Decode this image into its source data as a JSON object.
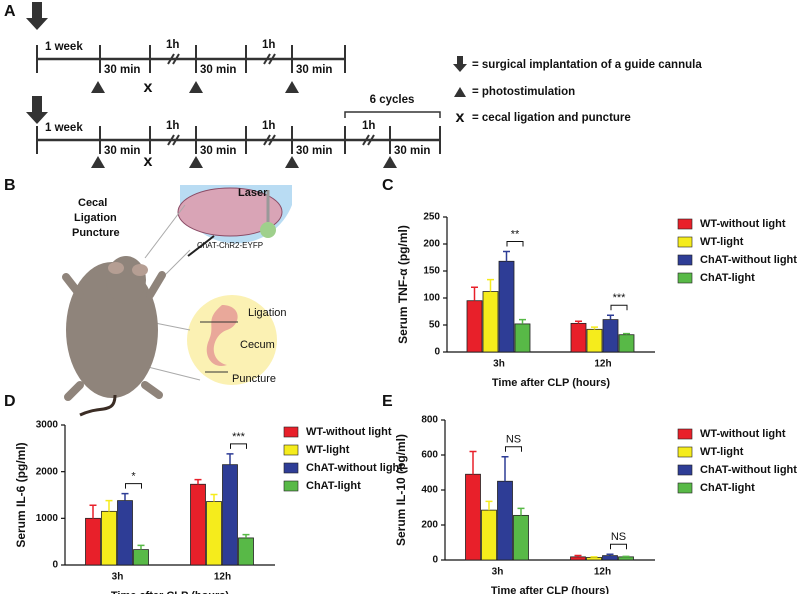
{
  "panel_labels": [
    "A",
    "B",
    "C",
    "D",
    "E"
  ],
  "timeline": {
    "week": "1 week",
    "stim": "30 min",
    "interval": "1h",
    "cycles": "6 cycles"
  },
  "legend_a": [
    "= surgical implantation of a guide cannula",
    "= photostimulation",
    "= cecal ligation and puncture"
  ],
  "diagram_b": {
    "title": [
      "Cecal",
      "Ligation",
      "Puncture"
    ],
    "laser": "Laser",
    "mouse_line": "ChAT-ChR2-EYFP",
    "ligation": "Ligation",
    "cecum": "Cecum",
    "puncture": "Puncture"
  },
  "chart_data": [
    {
      "type": "bar",
      "ylabel": "Serum TNF-α (pg/ml)",
      "xlabel": "Time after CLP (hours)",
      "categories": [
        "3h",
        "12h"
      ],
      "series": [
        {
          "name": "WT-without light",
          "color": "#e8202a",
          "values": [
            95,
            53
          ],
          "errors": [
            25,
            4
          ]
        },
        {
          "name": "WT-light",
          "color": "#f5ec1c",
          "values": [
            112,
            42
          ],
          "errors": [
            22,
            4
          ]
        },
        {
          "name": "ChAT-without light",
          "color": "#2e3d96",
          "values": [
            168,
            60
          ],
          "errors": [
            18,
            8
          ]
        },
        {
          "name": "ChAT-light",
          "color": "#58b947",
          "values": [
            52,
            32
          ],
          "errors": [
            8,
            2
          ]
        }
      ],
      "annotations": [
        "**",
        "***"
      ],
      "ylim": [
        0,
        250
      ],
      "yticks": [
        0,
        50,
        100,
        150,
        200,
        250
      ],
      "legend": "right"
    },
    {
      "type": "bar",
      "ylabel": "Serum IL-6 (pg/ml)",
      "xlabel": "Time after CLP (hours)",
      "categories": [
        "3h",
        "12h"
      ],
      "series": [
        {
          "name": "WT-without light",
          "color": "#e8202a",
          "values": [
            1000,
            1730
          ],
          "errors": [
            280,
            100
          ]
        },
        {
          "name": "WT-light",
          "color": "#f5ec1c",
          "values": [
            1150,
            1360
          ],
          "errors": [
            230,
            150
          ]
        },
        {
          "name": "ChAT-without light",
          "color": "#2e3d96",
          "values": [
            1380,
            2150
          ],
          "errors": [
            150,
            230
          ]
        },
        {
          "name": "ChAT-light",
          "color": "#58b947",
          "values": [
            330,
            580
          ],
          "errors": [
            90,
            70
          ]
        }
      ],
      "annotations": [
        "*",
        "***"
      ],
      "ylim": [
        0,
        3000
      ],
      "yticks": [
        0,
        1000,
        2000,
        3000
      ],
      "legend": "right"
    },
    {
      "type": "bar",
      "ylabel": "Serum IL-10 (pg/ml)",
      "xlabel": "Time after CLP (hours)",
      "categories": [
        "3h",
        "12h"
      ],
      "series": [
        {
          "name": "WT-without light",
          "color": "#e8202a",
          "values": [
            490,
            18
          ],
          "errors": [
            130,
            8
          ]
        },
        {
          "name": "WT-light",
          "color": "#f5ec1c",
          "values": [
            285,
            15
          ],
          "errors": [
            50,
            3
          ]
        },
        {
          "name": "ChAT-without light",
          "color": "#2e3d96",
          "values": [
            450,
            25
          ],
          "errors": [
            140,
            8
          ]
        },
        {
          "name": "ChAT-light",
          "color": "#58b947",
          "values": [
            255,
            18
          ],
          "errors": [
            40,
            3
          ]
        }
      ],
      "annotations": [
        "NS",
        "NS"
      ],
      "ylim": [
        0,
        800
      ],
      "yticks": [
        0,
        200,
        400,
        600,
        800
      ],
      "legend": "right"
    }
  ]
}
